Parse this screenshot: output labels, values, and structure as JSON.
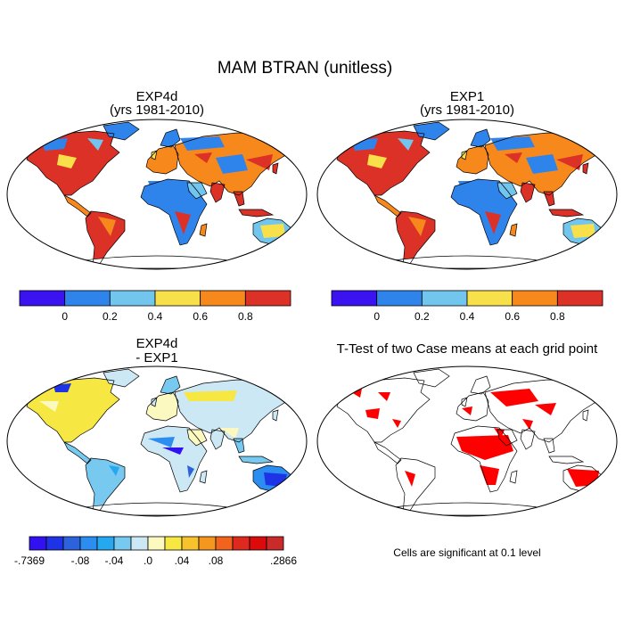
{
  "chart_data": {
    "type": "map",
    "title": "MAM BTRAN (unitless)",
    "panels": [
      {
        "id": "exp4d",
        "title_lines": [
          "EXP4d",
          "(yrs 1981-2010)"
        ],
        "variable": "BTRAN",
        "units": "unitless",
        "colorbar": {
          "levels": [
            0,
            0.2,
            0.4,
            0.6,
            0.8
          ],
          "tick_labels": [
            "0",
            "0.2",
            "0.4",
            "0.6",
            "0.8"
          ],
          "colors": [
            "#3b12f0",
            "#2f84ec",
            "#72c6ee",
            "#f7e04a",
            "#f7881c",
            "#dc3127"
          ]
        }
      },
      {
        "id": "exp1",
        "title_lines": [
          "EXP1",
          "(yrs 1981-2010)"
        ],
        "variable": "BTRAN",
        "units": "unitless",
        "colorbar": {
          "levels": [
            0,
            0.2,
            0.4,
            0.6,
            0.8
          ],
          "tick_labels": [
            "0",
            "0.2",
            "0.4",
            "0.6",
            "0.8"
          ],
          "colors": [
            "#3b12f0",
            "#2f84ec",
            "#72c6ee",
            "#f7e04a",
            "#f7881c",
            "#dc3127"
          ]
        }
      },
      {
        "id": "difference",
        "title_lines": [
          "EXP4d",
          "- EXP1"
        ],
        "variable": "BTRAN difference",
        "colorbar": {
          "min": -0.7369,
          "max": 0.2866,
          "tick_labels": [
            "-.7369",
            "-.08",
            "-.04",
            ".0",
            ".04",
            ".08",
            ".2866"
          ],
          "colors": [
            "#3110f2",
            "#1e32e6",
            "#2c62dc",
            "#2c8df0",
            "#25a8f0",
            "#78c9ef",
            "#cbe8f4",
            "#fbf8c0",
            "#f7e743",
            "#f6c32e",
            "#f5961e",
            "#f2631e",
            "#de2a1e",
            "#dc0b0b",
            "#c92a2a"
          ]
        }
      },
      {
        "id": "ttest",
        "title_lines": [
          "T-Test of two Case means at each grid point"
        ],
        "note": "Cells are significant at 0.1 level",
        "significant_color": "#ff0000"
      }
    ]
  }
}
